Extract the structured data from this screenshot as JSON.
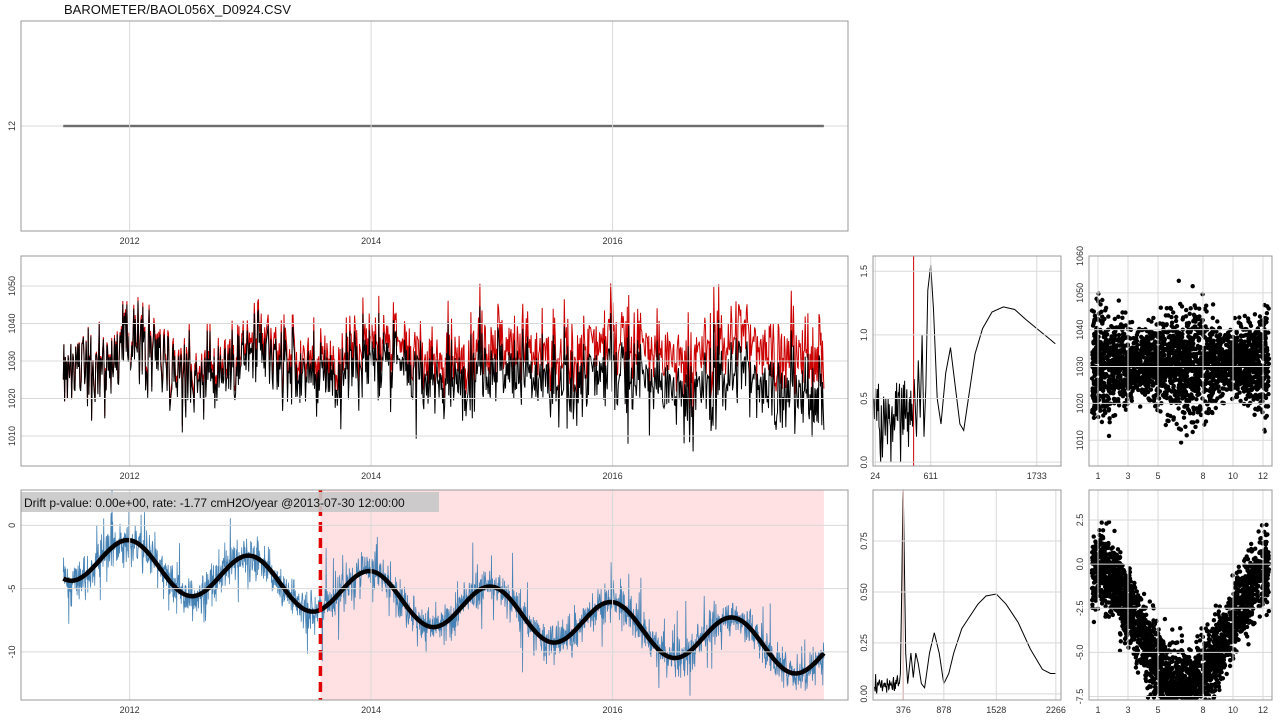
{
  "title": "BAROMETER/BAOL056X_D0924.CSV",
  "drift_label": "Drift p-value: 0.00e+00, rate: -1.77 cmH2O/year @2013-07-30 12:00:00",
  "colors": {
    "raw": "#cc0000",
    "corrected": "#000000",
    "residual": "#4682b4",
    "trend": "#000000",
    "changepoint": "#e00000",
    "shade": "#ffe0e3",
    "grid": "#d9d9d9",
    "frame": "#999999"
  },
  "chart_data": [
    {
      "id": "p1",
      "type": "line",
      "xlim": [
        2011.1,
        2017.95
      ],
      "ylim": [
        11.9,
        12.1
      ],
      "x_ticks": [
        2012,
        2014,
        2016
      ],
      "x_tick_labels": [
        "2012",
        "2014",
        "2016"
      ],
      "y_ticks": [
        12
      ],
      "y_tick_labels": [
        "12"
      ],
      "series": [
        {
          "x": [
            2011.45,
            2017.75
          ],
          "y": [
            12,
            12
          ]
        }
      ],
      "reference_line_y": 12
    },
    {
      "id": "p2",
      "type": "line",
      "xlim": [
        2011.1,
        2017.95
      ],
      "ylim": [
        1002,
        1058
      ],
      "x_ticks": [
        2012,
        2014,
        2016
      ],
      "x_tick_labels": [
        "2012",
        "2014",
        "2016"
      ],
      "y_ticks": [
        1010,
        1020,
        1030,
        1040,
        1050
      ],
      "y_tick_labels": [
        "1010",
        "1020",
        "1030",
        "1040",
        "1050"
      ],
      "series_info": [
        {
          "color": "red",
          "start": 2011.45,
          "end": 2017.75,
          "mean_start": 1031,
          "mean_end": 1034
        },
        {
          "color": "black",
          "start": 2011.45,
          "end": 2017.75,
          "mean_start": 1031,
          "mean_end": 1023
        }
      ]
    },
    {
      "id": "p3",
      "type": "line",
      "xlim": [
        2011.1,
        2017.95
      ],
      "ylim": [
        -13.8,
        2.8
      ],
      "x_ticks": [
        2012,
        2014,
        2016
      ],
      "x_tick_labels": [
        "2012",
        "2014",
        "2016"
      ],
      "y_ticks": [
        0,
        -5,
        -10
      ],
      "y_tick_labels": [
        "0",
        "-5",
        "-10"
      ],
      "changepoint_x": 2013.58,
      "shade_range": [
        2013.58,
        2017.75
      ],
      "trend": {
        "start": 2011.45,
        "end": 2017.75,
        "base_start": -2.4,
        "base_end": -10.1,
        "amplitude": 1.9
      }
    },
    {
      "id": "p4",
      "type": "line",
      "xlim": [
        0,
        1990
      ],
      "ylim": [
        -0.03,
        1.62
      ],
      "x_ticks": [
        24,
        611,
        1733
      ],
      "x_tick_labels": [
        "24",
        "611",
        "1733"
      ],
      "y_ticks": [
        0.0,
        0.5,
        1.0,
        1.5
      ],
      "y_tick_labels": [
        "0.0",
        "0.5",
        "1.0",
        "1.5"
      ],
      "vline_x": 430
    },
    {
      "id": "p5",
      "type": "line",
      "xlim": [
        0,
        2330
      ],
      "ylim": [
        -0.03,
        1.0
      ],
      "x_ticks": [
        376,
        878,
        1528,
        2266
      ],
      "x_tick_labels": [
        "376",
        "878",
        "1528",
        "2266"
      ],
      "y_ticks": [
        0.0,
        0.25,
        0.5,
        0.75
      ],
      "y_tick_labels": [
        "0.00",
        "0.25",
        "0.50",
        "0.75"
      ],
      "vline_x": 376
    },
    {
      "id": "p6",
      "type": "scatter",
      "xlim": [
        0.4,
        12.6
      ],
      "ylim": [
        1003,
        1060
      ],
      "x_ticks": [
        1,
        3,
        5,
        8,
        10,
        12
      ],
      "x_tick_labels": [
        "1",
        "3",
        "5",
        "8",
        "10",
        "12"
      ],
      "y_ticks": [
        1010,
        1020,
        1030,
        1040,
        1050,
        1060
      ],
      "y_tick_labels": [
        "1010",
        "1020",
        "1030",
        "1040",
        "1050",
        "1060"
      ]
    },
    {
      "id": "p7",
      "type": "scatter",
      "xlim": [
        0.4,
        12.6
      ],
      "ylim": [
        -7.7,
        4.2
      ],
      "x_ticks": [
        1,
        3,
        5,
        8,
        10,
        12
      ],
      "x_tick_labels": [
        "1",
        "3",
        "5",
        "8",
        "10",
        "12"
      ],
      "y_ticks": [
        2.5,
        0.0,
        -2.5,
        -5.0,
        -7.5
      ],
      "y_tick_labels": [
        "2.5",
        "0.0",
        "-2.5",
        "-5.0",
        "-7.5"
      ]
    }
  ]
}
